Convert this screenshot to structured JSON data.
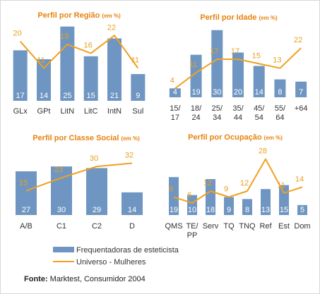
{
  "legend": {
    "bars_label": "Frequentadoras de esteticista",
    "line_label": "Universo - Mulheres"
  },
  "source": {
    "label": "Fonte:",
    "text": " Marktest, Consumidor 2004"
  },
  "colors": {
    "bar": "#6f96c2",
    "line": "#f0a020",
    "title": "#e8820c"
  },
  "chart_data": [
    {
      "type": "bar",
      "title": "Perfil por Região",
      "unit": "(em %)",
      "categories": [
        [
          "GLx"
        ],
        [
          "GPt"
        ],
        [
          "LitN"
        ],
        [
          "LitC"
        ],
        [
          "IntN"
        ],
        [
          "Sul"
        ]
      ],
      "series": [
        {
          "name": "Frequentadoras de esteticista",
          "kind": "bar",
          "values": [
            17,
            14,
            25,
            15,
            21,
            9
          ]
        },
        {
          "name": "Universo - Mulheres",
          "kind": "line",
          "values": [
            20,
            11,
            19,
            16,
            22,
            11
          ]
        }
      ],
      "ylim": [
        0,
        28
      ]
    },
    {
      "type": "bar",
      "title": "Perfil por Idade",
      "unit": "(em %)",
      "categories": [
        [
          "15/",
          "17"
        ],
        [
          "18/",
          "24"
        ],
        [
          "25/",
          "34"
        ],
        [
          "35/",
          "44"
        ],
        [
          "45/",
          "54"
        ],
        [
          "55/",
          "64"
        ],
        [
          "+64"
        ]
      ],
      "series": [
        {
          "name": "Frequentadoras de esteticista",
          "kind": "bar",
          "values": [
            4,
            19,
            30,
            20,
            14,
            8,
            7
          ]
        },
        {
          "name": "Universo - Mulheres",
          "kind": "line",
          "values": [
            4,
            11,
            17,
            17,
            15,
            13,
            22
          ]
        }
      ],
      "ylim": [
        0,
        34
      ]
    },
    {
      "type": "bar",
      "title": "Perfil por Classe Social",
      "unit": "(em %)",
      "categories": [
        [
          "A/B"
        ],
        [
          "C1"
        ],
        [
          "C2"
        ],
        [
          "D"
        ]
      ],
      "series": [
        {
          "name": "Frequentadoras de esteticista",
          "kind": "bar",
          "values": [
            27,
            30,
            29,
            14
          ]
        },
        {
          "name": "Universo - Mulheres",
          "kind": "line",
          "values": [
            15,
            23,
            30,
            32
          ]
        }
      ],
      "ylim": [
        0,
        37
      ]
    },
    {
      "type": "bar",
      "title": "Perfil por Ocupação",
      "unit": "(em %)",
      "categories": [
        [
          "QMS"
        ],
        [
          "TE/",
          "PP"
        ],
        [
          "Serv"
        ],
        [
          "TQ"
        ],
        [
          "TNQ"
        ],
        [
          "Ref"
        ],
        [
          "Est"
        ],
        [
          "Dom"
        ]
      ],
      "series": [
        {
          "name": "Frequentadoras de esteticista",
          "kind": "bar",
          "values": [
            19,
            10,
            18,
            9,
            8,
            13,
            15,
            5
          ]
        },
        {
          "name": "Universo - Mulheres",
          "kind": "line",
          "values": [
            9,
            6,
            12,
            9,
            12,
            28,
            11,
            14
          ]
        }
      ],
      "ylim": [
        0,
        30
      ]
    }
  ]
}
